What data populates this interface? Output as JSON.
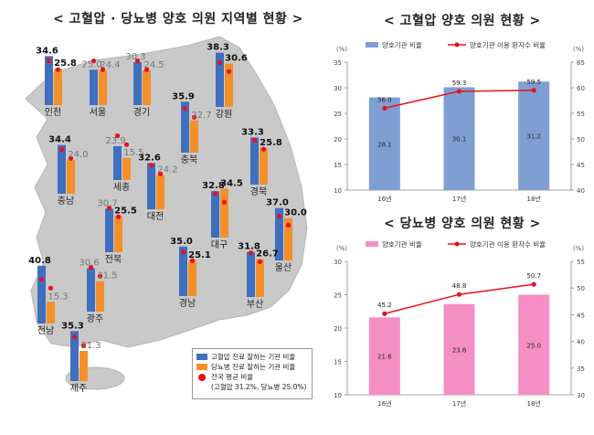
{
  "map": {
    "title": "< 고혈압 · 당뇨병 양호 의원 지역별 현황 >",
    "legend": {
      "hypertension": "고혈압 진료 잘하는 기관 비율",
      "diabetes": "당뇨병 진료 잘하는 기관 비율",
      "national_avg": "전국 평균 비율",
      "national_avg_note": "(고혈압 31.2%, 당뇨병 25.0%)"
    },
    "colors": {
      "map_fill": "#c9c9c9",
      "hypertension": "#3f6fbf",
      "diabetes": "#f58f2a",
      "avg_dot": "#e8111a"
    }
  },
  "chart_data": [
    {
      "type": "bar",
      "id": "regional",
      "title": "< 고혈압 · 당뇨병 양호 의원 지역별 현황 >",
      "categories": [
        "인천",
        "서울",
        "경기",
        "강원",
        "충북",
        "충남",
        "세종",
        "대전",
        "경북",
        "대구",
        "울산",
        "전북",
        "부산",
        "전남",
        "광주",
        "경남",
        "제주"
      ],
      "series": [
        {
          "name": "고혈압 진료 잘하는 기관 비율",
          "values": [
            34.6,
            25.0,
            30.3,
            38.3,
            35.9,
            34.4,
            23.9,
            32.6,
            33.3,
            32.8,
            37.0,
            30.7,
            31.8,
            40.8,
            30.6,
            35.0,
            35.3
          ]
        },
        {
          "name": "당뇨병 진료 잘하는 기관 비율",
          "values": [
            25.8,
            24.4,
            24.5,
            30.6,
            22.7,
            24.0,
            15.5,
            24.2,
            25.8,
            34.5,
            30.0,
            25.5,
            26.7,
            15.3,
            21.5,
            25.1,
            21.3
          ]
        }
      ],
      "reference": {
        "label": "전국 평균 비율",
        "hypertension": 31.2,
        "diabetes": 25.0
      }
    },
    {
      "type": "bar",
      "id": "hypertension",
      "title": "< 고혈압 양호 의원 현황 >",
      "categories": [
        "16년",
        "17년",
        "18년"
      ],
      "series": [
        {
          "name": "양호기관 비율",
          "values": [
            28.1,
            30.1,
            31.2
          ],
          "axis": "left"
        },
        {
          "name": "양호기관 이용 환자수 비율",
          "type": "line",
          "values": [
            56.0,
            59.3,
            59.5
          ],
          "axis": "right"
        }
      ],
      "left_axis": {
        "unit": "(%)",
        "ylim": [
          10,
          35
        ],
        "ticks": [
          10,
          15,
          20,
          25,
          30,
          35
        ]
      },
      "right_axis": {
        "unit": "(%)",
        "ylim": [
          40,
          65
        ],
        "ticks": [
          40,
          45,
          50,
          55,
          60,
          65
        ]
      },
      "colors": {
        "bar": "#7f9fd3",
        "line": "#e8111a"
      },
      "legend_position": "top"
    },
    {
      "type": "bar",
      "id": "diabetes",
      "title": "< 당뇨병 양호 의원 현황 >",
      "categories": [
        "16년",
        "17년",
        "18년"
      ],
      "series": [
        {
          "name": "양호기관 비율",
          "values": [
            21.6,
            23.6,
            25.0
          ],
          "axis": "left"
        },
        {
          "name": "양호기관 이용 환자수 비율",
          "type": "line",
          "values": [
            45.2,
            48.8,
            50.7
          ],
          "axis": "right"
        }
      ],
      "left_axis": {
        "unit": "(%)",
        "ylim": [
          10,
          30
        ],
        "ticks": [
          10,
          15,
          20,
          25,
          30
        ]
      },
      "right_axis": {
        "unit": "(%)",
        "ylim": [
          30,
          55
        ],
        "ticks": [
          30,
          35,
          40,
          45,
          50,
          55
        ]
      },
      "colors": {
        "bar": "#f58fc3",
        "line": "#e8111a"
      },
      "legend_position": "top"
    }
  ]
}
